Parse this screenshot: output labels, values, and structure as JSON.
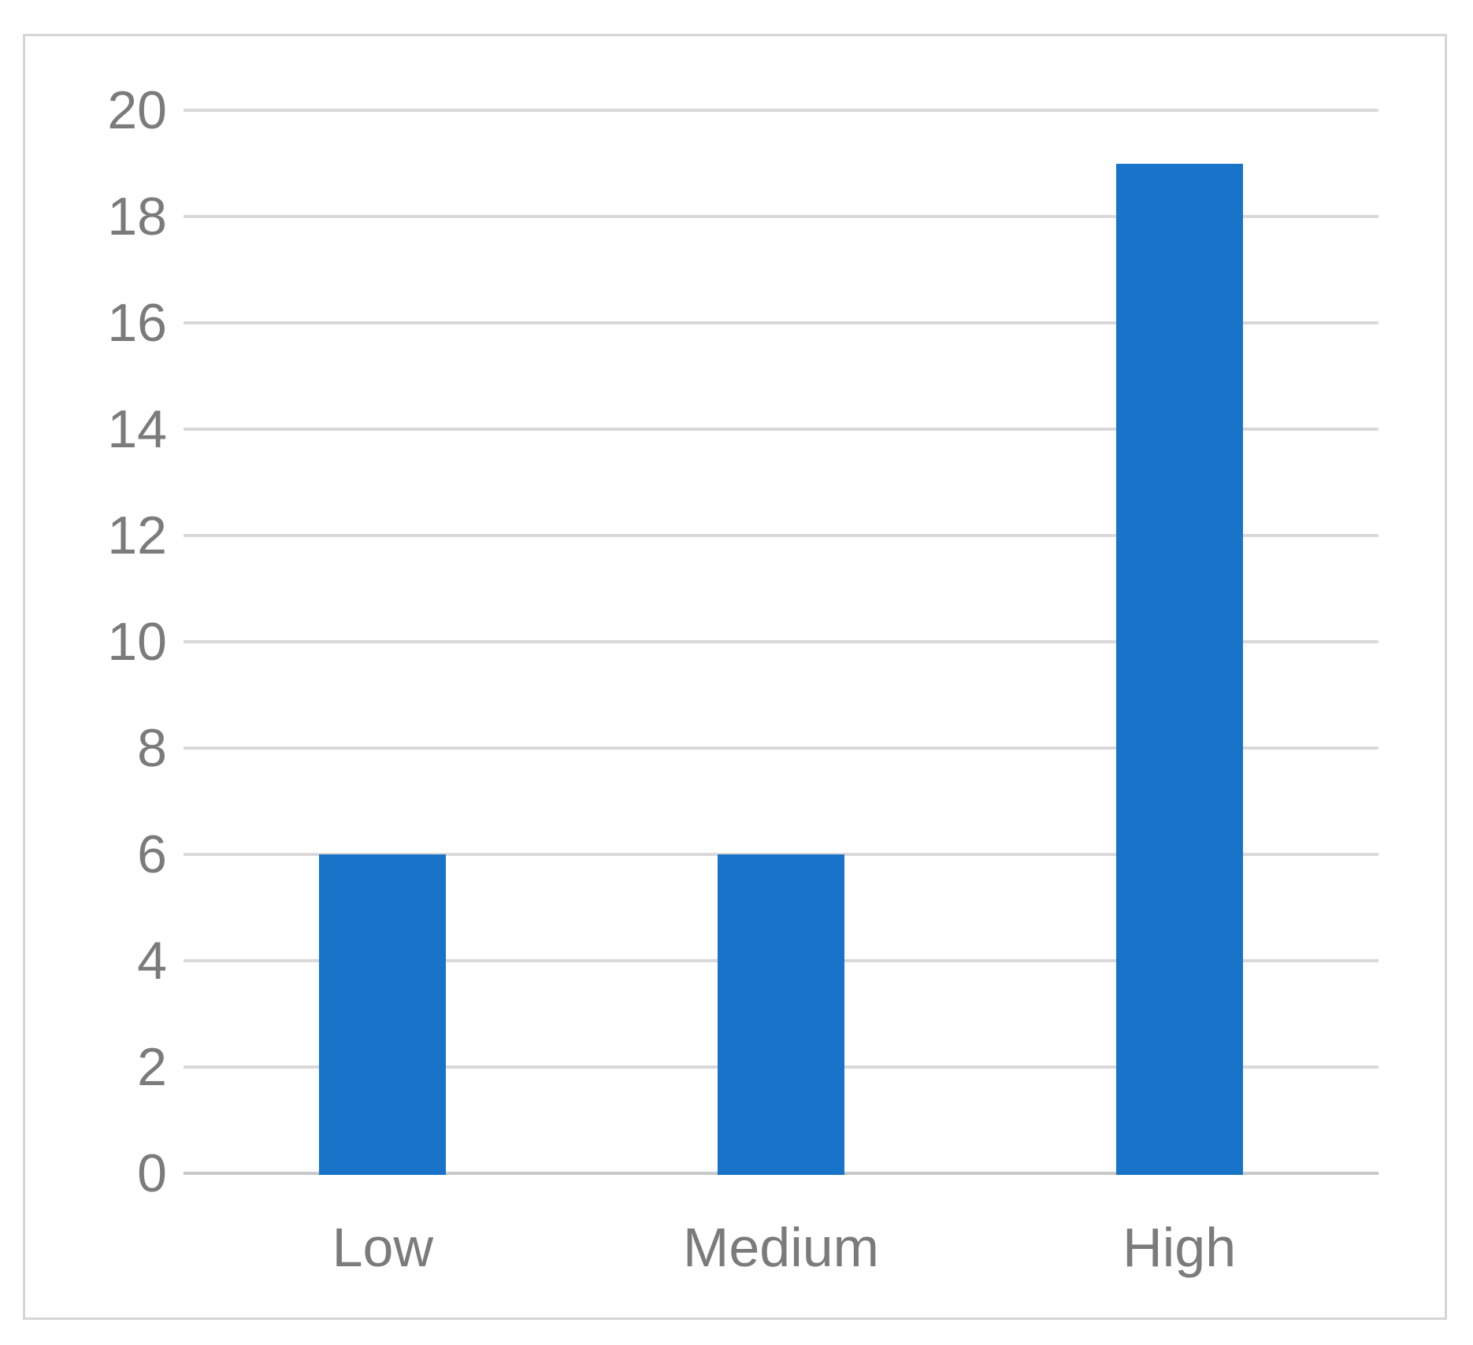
{
  "chart_data": {
    "type": "bar",
    "categories": [
      "Low",
      "Medium",
      "High"
    ],
    "values": [
      6,
      6,
      19
    ],
    "title": "",
    "xlabel": "",
    "ylabel": "",
    "ylim": [
      0,
      20
    ],
    "ytick_step": 2,
    "yticks": [
      0,
      2,
      4,
      6,
      8,
      10,
      12,
      14,
      16,
      18,
      20
    ],
    "grid": true,
    "legend_position": "none",
    "colors": {
      "bar": "#1774c8",
      "gridline": "#d9d9d9",
      "axis_line": "#c8c8c8",
      "label": "#7b7b7b",
      "frame_border": "#d5d5d5",
      "background": "#ffffff"
    }
  }
}
